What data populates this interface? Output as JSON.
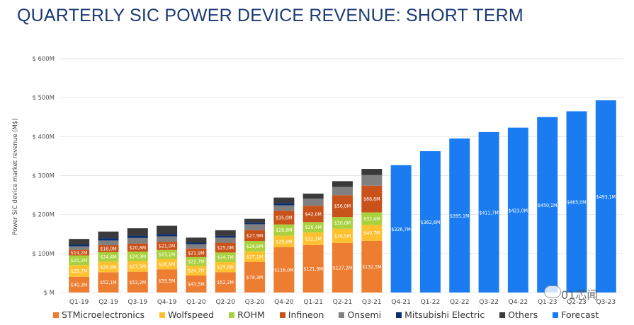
{
  "title": "QUARTERLY SIC POWER DEVICE REVENUE: SHORT TERM",
  "watermark": "01芯闻",
  "chart_data": {
    "type": "bar",
    "stacked": true,
    "title": "QUARTERLY SIC POWER DEVICE REVENUE: SHORT TERM",
    "xlabel": "",
    "ylabel": "Power SiC device market revenue (M$)",
    "ylim": [
      0,
      600
    ],
    "yticks": [
      0,
      100,
      200,
      300,
      400,
      500,
      600
    ],
    "ytick_labels": [
      "$ M",
      "$ 100M",
      "$ 200M",
      "$ 300M",
      "$ 400M",
      "$ 500M",
      "$ 600M"
    ],
    "grid": true,
    "legend_position": "bottom",
    "categories": [
      "Q1-19",
      "Q2-19",
      "Q3-19",
      "Q4-19",
      "Q1-20",
      "Q2-20",
      "Q3-20",
      "Q4-20",
      "Q1-21",
      "Q2-21",
      "Q3-21",
      "Q4-21",
      "Q1-22",
      "Q2-22",
      "Q3-22",
      "Q4-22",
      "Q1-23",
      "Q2-23",
      "Q3-23"
    ],
    "series": [
      {
        "name": "STMicroelectronics",
        "color": "#ed7d31",
        "labeled": true,
        "values": [
          40.3,
          52.1,
          53.2,
          59.5,
          43.5,
          52.2,
          78.3,
          116.0,
          121.9,
          127.2,
          132.5,
          null,
          null,
          null,
          null,
          null,
          null,
          null,
          null
        ]
      },
      {
        "name": "Wolfspeed",
        "color": "#ffc12f",
        "labeled": true,
        "values": [
          29.7,
          26.9,
          27.5,
          26.6,
          24.7,
          25.8,
          27.1,
          29.8,
          32.3,
          36.5,
          40.7,
          null,
          null,
          null,
          null,
          null,
          null,
          null,
          null
        ]
      },
      {
        "name": "ROHM",
        "color": "#a9d13d",
        "labeled": true,
        "values": [
          25.2,
          24.4,
          24.3,
          23.1,
          22.7,
          24.7,
          26.8,
          28.8,
          26.4,
          30.0,
          32.4,
          null,
          null,
          null,
          null,
          null,
          null,
          null,
          null
        ]
      },
      {
        "name": "Infineon",
        "color": "#c9521a",
        "labeled": true,
        "values": [
          14.2,
          18.0,
          20.8,
          21.0,
          21.9,
          25.0,
          27.9,
          35.0,
          42.0,
          56.0,
          68.6,
          null,
          null,
          null,
          null,
          null,
          null,
          null,
          null
        ]
      },
      {
        "name": "Onsemi",
        "color": "#808080",
        "labeled": false,
        "values": [
          9,
          12,
          14,
          14,
          11,
          13,
          15,
          14,
          18,
          21,
          27,
          null,
          null,
          null,
          null,
          null,
          null,
          null,
          null
        ]
      },
      {
        "name": "Mitsubishi Electric",
        "color": "#0b2e6e",
        "labeled": false,
        "values": [
          5,
          6,
          6,
          6,
          4,
          5,
          4,
          6,
          0,
          0,
          0,
          null,
          null,
          null,
          null,
          null,
          null,
          null,
          null
        ]
      },
      {
        "name": "Others",
        "color": "#3a3a3a",
        "labeled": false,
        "values": [
          14,
          17,
          19,
          21,
          13,
          14,
          10,
          14,
          13,
          15,
          16,
          null,
          null,
          null,
          null,
          null,
          null,
          null,
          null
        ]
      },
      {
        "name": "Forecast",
        "color": "#1b7cf2",
        "labeled": true,
        "values": [
          null,
          null,
          null,
          null,
          null,
          null,
          null,
          null,
          null,
          null,
          null,
          326.7,
          362.6,
          395.1,
          411.7,
          423.0,
          450.1,
          465.0,
          493.1
        ]
      }
    ],
    "value_label_format": "$%sM (comma decimal)",
    "value_labels": {
      "STMicroelectronics": [
        "$40,3M",
        "$52,1M",
        "$53,2M",
        "$59,5M",
        "$43,5M",
        "$52,2M",
        "$78,3M",
        "$116,0M",
        "$121,9M",
        "$127,2M",
        "$132,5M"
      ],
      "Wolfspeed": [
        "$29,7M",
        "$26,9M",
        "$27,5M",
        "$26,6M",
        "$24,7M",
        "$25,8M",
        "$27,1M",
        "$29,8M",
        "$32,3M",
        "$36,5M",
        "$40,7M"
      ],
      "ROHM": [
        "$25,2M",
        "$24,4M",
        "$24,3M",
        "$23,1M",
        "$22,7M",
        "$24,7M",
        "$26,8M",
        "$28,8M",
        "$26,4M",
        "$30,0M",
        "$32,4M"
      ],
      "Infineon": [
        "$14,2M",
        "$18,0M",
        "$20,8M",
        "$21,0M",
        "$21,9M",
        "$25,0M",
        "$27,9M",
        "$35,0M",
        "$42,0M",
        "$56,0M",
        "$68,6M"
      ],
      "Forecast": [
        "$326,7M",
        "$362,6M",
        "$395,1M",
        "$411,7M",
        "$423,0M",
        "$450,1M",
        "$465,0M",
        "$493,1M"
      ]
    }
  },
  "legend": [
    {
      "label": "STMicroelectronics",
      "color": "#ed7d31"
    },
    {
      "label": "Wolfspeed",
      "color": "#ffc12f"
    },
    {
      "label": "ROHM",
      "color": "#a9d13d"
    },
    {
      "label": "Infineon",
      "color": "#c9521a"
    },
    {
      "label": "Onsemi",
      "color": "#808080"
    },
    {
      "label": "Mitsubishi Electric",
      "color": "#0b2e6e"
    },
    {
      "label": "Others",
      "color": "#3a3a3a"
    },
    {
      "label": "Forecast",
      "color": "#1b7cf2"
    }
  ]
}
